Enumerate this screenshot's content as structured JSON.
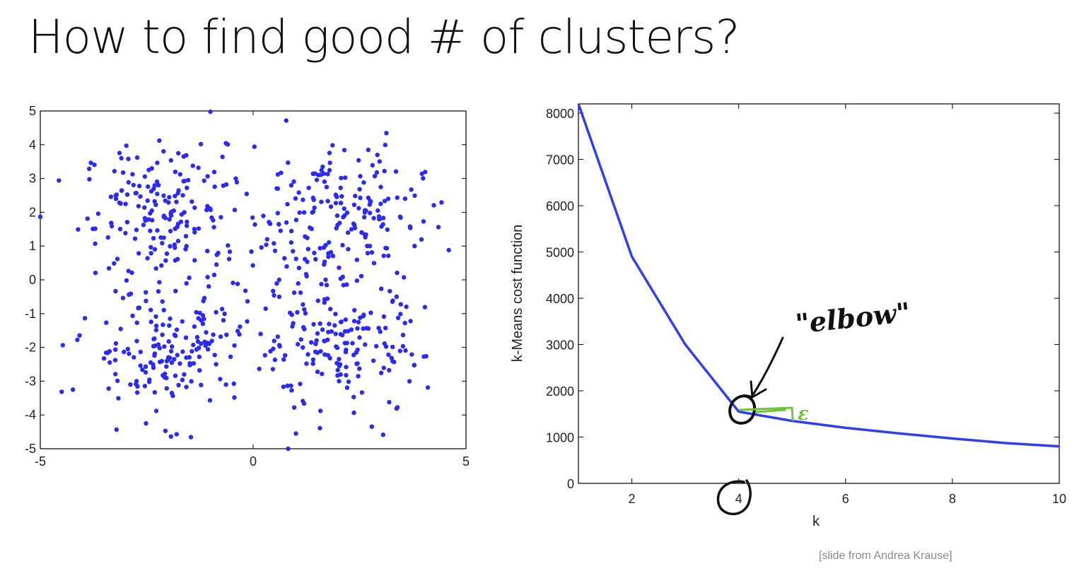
{
  "slide": {
    "title": "How to find good # of clusters?",
    "footer": "[slide from Andrea Krause]"
  },
  "colors": {
    "points": "#2a2af0",
    "line": "#2f3ff0",
    "annotation_black": "#111111",
    "annotation_green": "#6cc43a"
  },
  "chart_data": [
    {
      "type": "scatter",
      "xlim": [
        -5,
        5
      ],
      "ylim": [
        -5,
        5
      ],
      "xticks": [
        "-5",
        "0",
        "5"
      ],
      "yticks": [
        "5",
        "4",
        "3",
        "2",
        "1",
        "0",
        "-1",
        "-2",
        "-3",
        "-4",
        "-5"
      ],
      "clusters": [
        {
          "center": [
            -2,
            2
          ],
          "spread": 1.0,
          "count": 180
        },
        {
          "center": [
            2,
            2
          ],
          "spread": 1.0,
          "count": 180
        },
        {
          "center": [
            -2,
            -2
          ],
          "spread": 1.0,
          "count": 180
        },
        {
          "center": [
            2,
            -2
          ],
          "spread": 1.0,
          "count": 180
        }
      ]
    },
    {
      "type": "line",
      "xlabel": "k",
      "ylabel": "k-Means cost function",
      "xlim": [
        1,
        10
      ],
      "ylim": [
        0,
        8200
      ],
      "xticks": [
        "2",
        "4",
        "6",
        "8",
        "10"
      ],
      "yticks": [
        "0",
        "1000",
        "2000",
        "3000",
        "4000",
        "5000",
        "6000",
        "7000",
        "8000"
      ],
      "x": [
        1,
        2,
        3,
        4,
        5,
        6,
        7,
        8,
        9,
        10
      ],
      "y": [
        8300,
        4900,
        3000,
        1550,
        1350,
        1200,
        1080,
        970,
        870,
        800
      ],
      "annotations": {
        "elbow_label": "\"elbow\"",
        "epsilon_label": "ε"
      }
    }
  ]
}
